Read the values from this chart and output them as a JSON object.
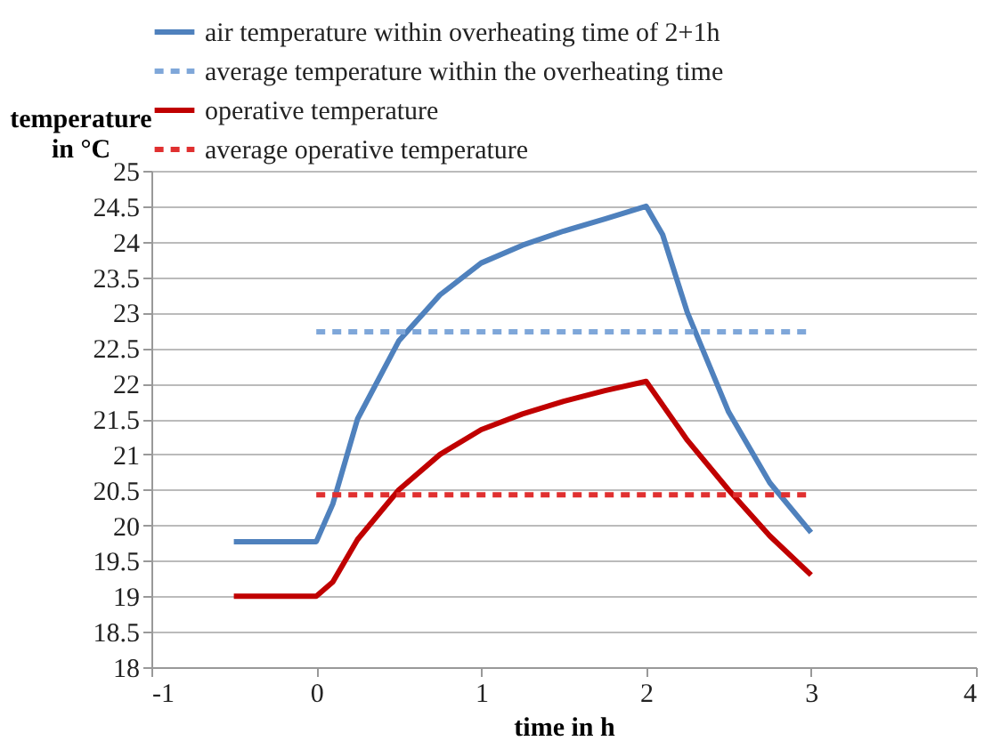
{
  "chart_data": {
    "type": "line",
    "xlabel": "time in h",
    "ylabel": "temperature\nin °C",
    "xlim": [
      -1,
      4
    ],
    "xticks": [
      -1,
      0,
      1,
      2,
      3,
      4
    ],
    "ylim": [
      18,
      25
    ],
    "yticks": [
      18,
      18.5,
      19,
      19.5,
      20,
      20.5,
      21,
      21.5,
      22,
      22.5,
      23,
      23.5,
      24,
      24.5,
      25
    ],
    "grid": "y",
    "legend": "top",
    "marker": "none",
    "series": [
      {
        "name": "air temperature within overheating time of 2+1h",
        "color": "#4f81bd",
        "line_style": "solid",
        "x": [
          -0.5,
          0,
          0.1,
          0.25,
          0.5,
          0.75,
          1,
          1.25,
          1.5,
          1.75,
          2,
          2.1,
          2.25,
          2.5,
          2.75,
          3
        ],
        "values": [
          19.77,
          19.77,
          20.3,
          21.5,
          22.6,
          23.25,
          23.7,
          23.95,
          24.15,
          24.32,
          24.5,
          24.1,
          23.0,
          21.6,
          20.6,
          19.9
        ]
      },
      {
        "name": "average temperature within the overheating time",
        "color": "#7fa7d9",
        "line_style": "dashed",
        "x": [
          0,
          3
        ],
        "values": [
          22.73,
          22.73
        ]
      },
      {
        "name": "operative temperature",
        "color": "#c00000",
        "line_style": "solid",
        "x": [
          -0.5,
          0,
          0.1,
          0.25,
          0.5,
          0.75,
          1,
          1.25,
          1.5,
          1.75,
          2,
          2.25,
          2.5,
          2.75,
          3
        ],
        "values": [
          19,
          19,
          19.2,
          19.8,
          20.5,
          21.0,
          21.35,
          21.57,
          21.75,
          21.9,
          22.03,
          21.2,
          20.5,
          19.85,
          19.3
        ]
      },
      {
        "name": "average operative temperature",
        "color": "#e03030",
        "line_style": "dashed",
        "x": [
          0,
          3
        ],
        "values": [
          20.43,
          20.43
        ]
      }
    ]
  }
}
